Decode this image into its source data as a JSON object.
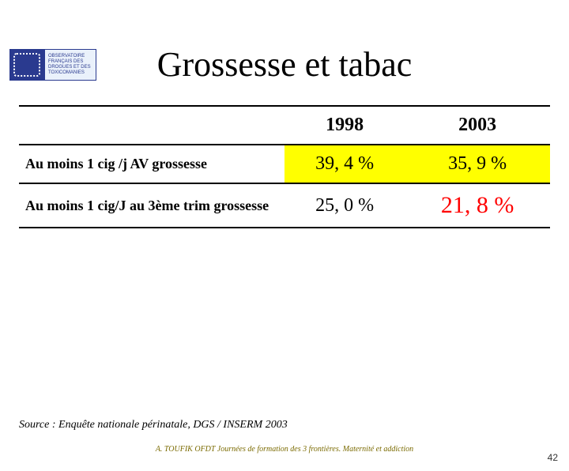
{
  "logo": {
    "org_lines": [
      "OBSERVATOIRE",
      "FRANÇAIS DES",
      "DROGUES ET DES",
      "TOXICOMANIES"
    ],
    "box_bg": "#eaf1fb",
    "box_border": "#2a3a8f",
    "square_bg": "#2a3a8f"
  },
  "title": "Grossesse et tabac",
  "table": {
    "columns": [
      {
        "label": "1998",
        "highlight": false
      },
      {
        "label": "2003",
        "highlight": false
      }
    ],
    "rows": [
      {
        "label": "Au moins 1 cig /j AV grossesse",
        "cells": [
          {
            "value": "39, 4 %",
            "highlight_bg": "#ffff00",
            "text_color": "#000000",
            "big": false
          },
          {
            "value": "35, 9 %",
            "highlight_bg": "#ffff00",
            "text_color": "#000000",
            "big": false
          }
        ]
      },
      {
        "label": "Au moins 1 cig/J au 3ème trim grossesse",
        "cells": [
          {
            "value": "25, 0 %",
            "highlight_bg": null,
            "text_color": "#000000",
            "big": false
          },
          {
            "value": "21, 8 %",
            "highlight_bg": null,
            "text_color": "#ff0000",
            "big": true
          }
        ]
      }
    ],
    "border_color": "#000000"
  },
  "source": "Source : Enquête nationale périnatale, DGS / INSERM 2003",
  "footer": "A. TOUFIK OFDT Journées de formation des 3 frontières. Maternité et addiction",
  "page_number": "42",
  "colors": {
    "background": "#ffffff",
    "title_text": "#000000"
  }
}
